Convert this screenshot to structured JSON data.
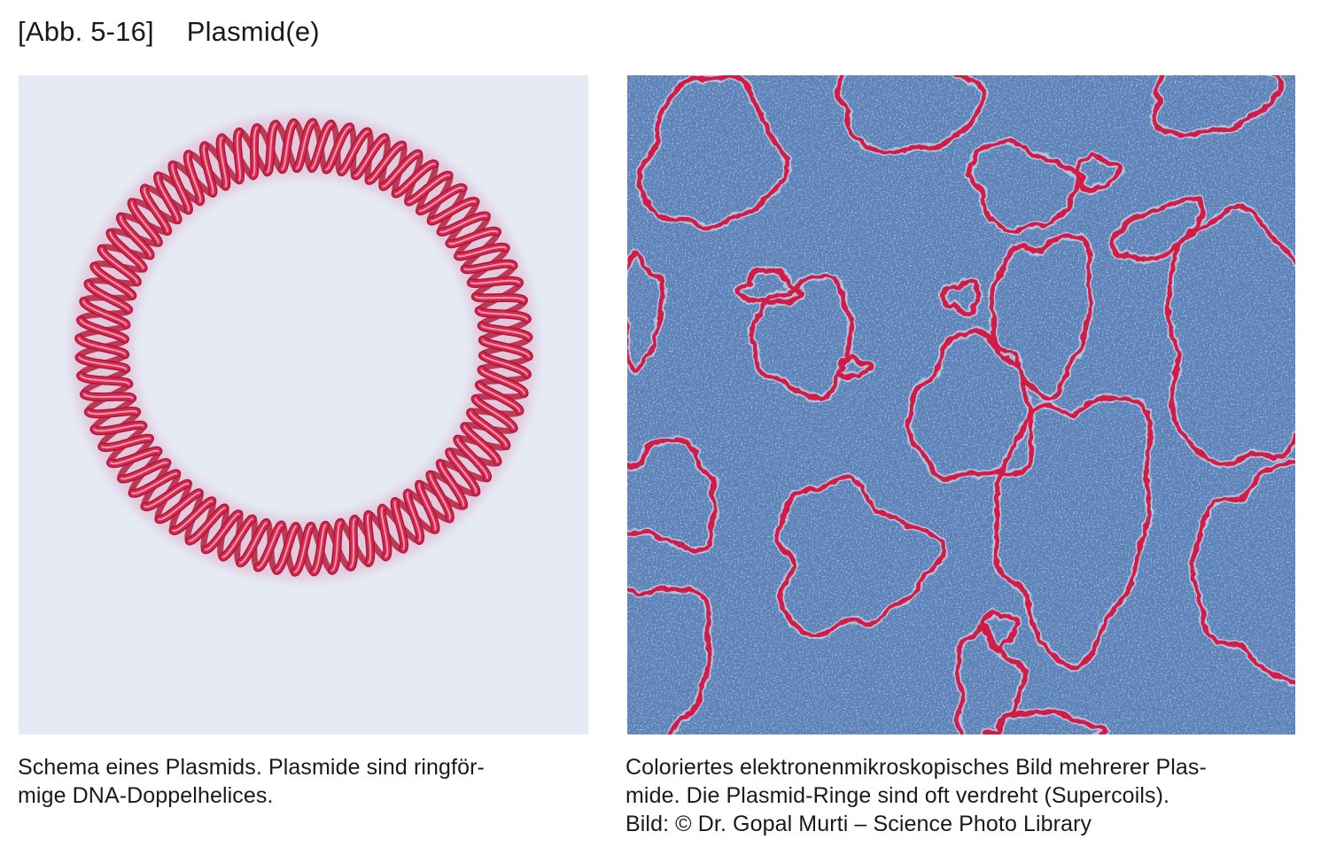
{
  "figure": {
    "label": "[Abb. 5-16]",
    "title": "Plasmid(e)"
  },
  "left_panel": {
    "caption_lines": [
      "Schema eines Plasmids. Plasmide sind ringför-",
      "mige DNA-Doppelhelices."
    ]
  },
  "right_panel": {
    "caption_lines": [
      "Coloriertes elektronenmikroskopisches Bild mehrerer Plas-",
      "mide. Die Plasmid-Ringe sind oft verdreht (Supercoils).",
      "Bild: © Dr. Gopal Murti – Science Photo Library"
    ]
  },
  "colors": {
    "helix_red": "#d8284f",
    "schematic_bg": "#e5eaf5",
    "micrograph_bg": "#5a82b8"
  }
}
